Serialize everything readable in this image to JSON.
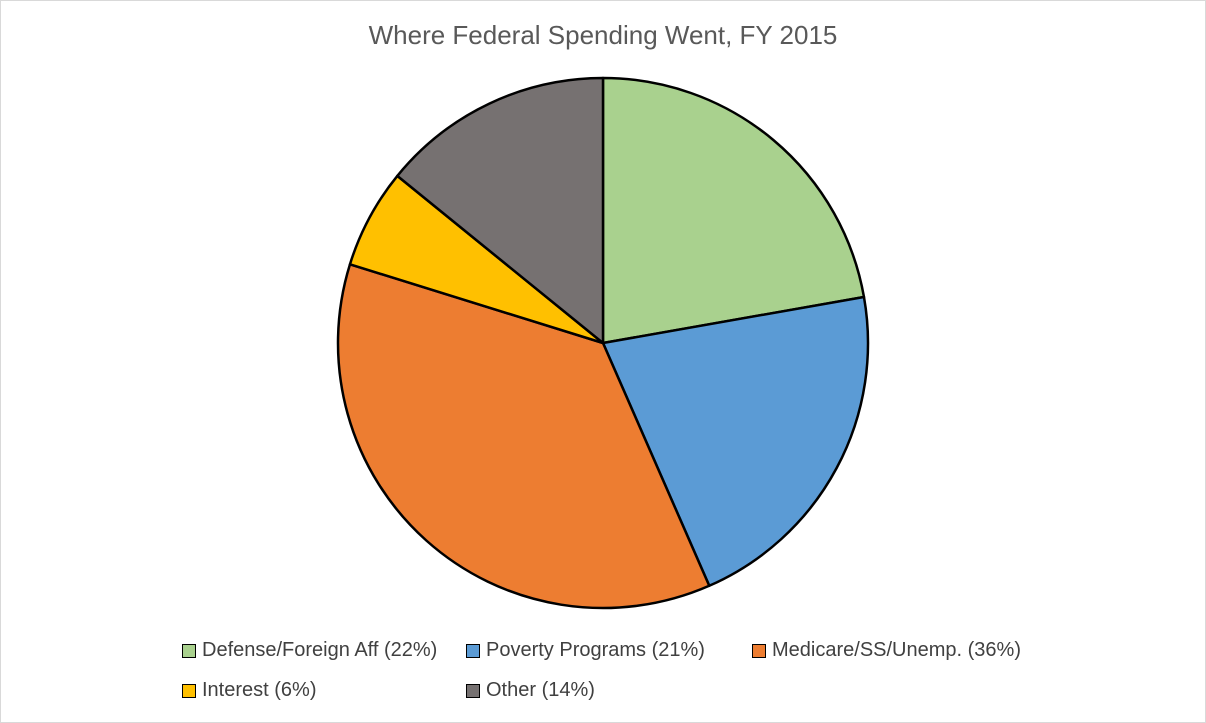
{
  "chart_data": {
    "type": "pie",
    "title": "Where Federal Spending Went, FY 2015",
    "categories": [
      "Defense/Foreign Aff (22%)",
      "Poverty Programs (21%)",
      "Medicare/SS/Unemp. (36%)",
      "Interest (6%)",
      "Other (14%)"
    ],
    "values": [
      22,
      21,
      36,
      6,
      14
    ],
    "colors": [
      "#a9d18e",
      "#5b9bd5",
      "#ed7d31",
      "#ffc000",
      "#767171"
    ],
    "start_angle_deg": 0,
    "direction": "clockwise",
    "legend_position": "bottom"
  }
}
